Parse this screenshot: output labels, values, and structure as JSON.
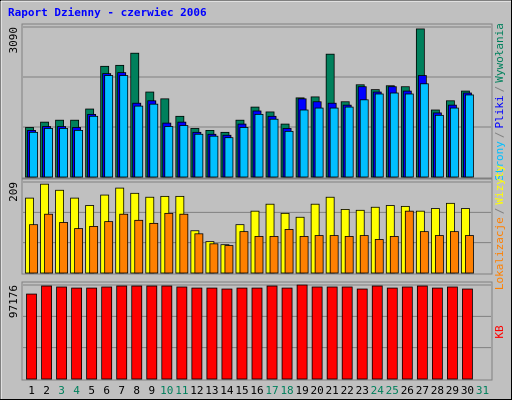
{
  "chart_data": [
    {
      "type": "bar",
      "title": "Raport Dzienny -  czerwiec 2006",
      "legend_separator": "/",
      "grid": true,
      "ylim": [
        0,
        3090
      ],
      "yticks": [
        3090
      ],
      "series": [
        {
          "name": "Wywołania",
          "color": "#00805c",
          "values": [
            1020,
            1130,
            1170,
            1170,
            1400,
            2280,
            2300,
            2550,
            1750,
            1610,
            1250,
            1000,
            960,
            920,
            1170,
            1440,
            1340,
            1090,
            1630,
            1650,
            2530,
            1550,
            1900,
            1800,
            1880,
            1860,
            3050,
            1380,
            1570,
            1770,
            null
          ]
        },
        {
          "name": "Pliki",
          "color": "#0000ff",
          "values": [
            960,
            1040,
            1040,
            1020,
            1290,
            2130,
            2150,
            1520,
            1570,
            1110,
            1130,
            920,
            880,
            860,
            1090,
            1360,
            1250,
            1000,
            1610,
            1550,
            1520,
            1480,
            1860,
            1750,
            1860,
            1770,
            2090,
            1320,
            1480,
            1730,
            null
          ]
        },
        {
          "name": "Strony",
          "color": "#00c0ff",
          "values": [
            920,
            1000,
            1000,
            960,
            1250,
            2090,
            2090,
            1460,
            1500,
            1040,
            1060,
            880,
            840,
            810,
            1020,
            1290,
            1190,
            940,
            1380,
            1420,
            1420,
            1440,
            1590,
            1710,
            1730,
            1710,
            1920,
            1270,
            1420,
            1690,
            null
          ]
        }
      ]
    },
    {
      "type": "bar",
      "grid": true,
      "ylim": [
        0,
        209
      ],
      "yticks": [
        209
      ],
      "series": [
        {
          "name": "Wizyty",
          "color": "#ffff00",
          "values": [
            172,
            204,
            190,
            172,
            155,
            179,
            195,
            183,
            174,
            176,
            176,
            97,
            72,
            65,
            111,
            142,
            158,
            137,
            128,
            158,
            174,
            146,
            144,
            151,
            155,
            153,
            142,
            148,
            160,
            148,
            null
          ]
        },
        {
          "name": "Lokalizacje",
          "color": "#ff8000",
          "values": [
            111,
            135,
            116,
            102,
            107,
            118,
            135,
            121,
            114,
            137,
            135,
            90,
            67,
            63,
            95,
            84,
            84,
            100,
            84,
            86,
            86,
            84,
            86,
            77,
            84,
            142,
            95,
            86,
            95,
            86,
            null
          ]
        }
      ]
    },
    {
      "type": "bar",
      "grid": true,
      "ylim": [
        0,
        97176
      ],
      "yticks": [
        97176
      ],
      "categories": [
        "1",
        "2",
        "3",
        "4",
        "5",
        "6",
        "7",
        "8",
        "9",
        "10",
        "11",
        "12",
        "13",
        "14",
        "15",
        "16",
        "17",
        "18",
        "19",
        "20",
        "21",
        "22",
        "23",
        "24",
        "25",
        "26",
        "27",
        "28",
        "29",
        "30",
        "31"
      ],
      "category_colors": [
        "#000000",
        "#000000",
        "#00805c",
        "#00805c",
        "#000000",
        "#000000",
        "#000000",
        "#000000",
        "#000000",
        "#00805c",
        "#00805c",
        "#000000",
        "#000000",
        "#000000",
        "#000000",
        "#000000",
        "#00805c",
        "#00805c",
        "#000000",
        "#000000",
        "#000000",
        "#000000",
        "#000000",
        "#00805c",
        "#00805c",
        "#000000",
        "#000000",
        "#000000",
        "#000000",
        "#000000",
        "#00805c"
      ],
      "series": [
        {
          "name": "KB",
          "color": "#ff0000",
          "values": [
            87800,
            96100,
            95100,
            94000,
            94000,
            95100,
            96100,
            96100,
            96100,
            96100,
            95100,
            94000,
            94000,
            93000,
            94000,
            94000,
            96100,
            94000,
            97176,
            95100,
            95100,
            95100,
            93000,
            96100,
            94000,
            95100,
            96100,
            94000,
            95100,
            93000,
            null
          ]
        }
      ]
    }
  ]
}
